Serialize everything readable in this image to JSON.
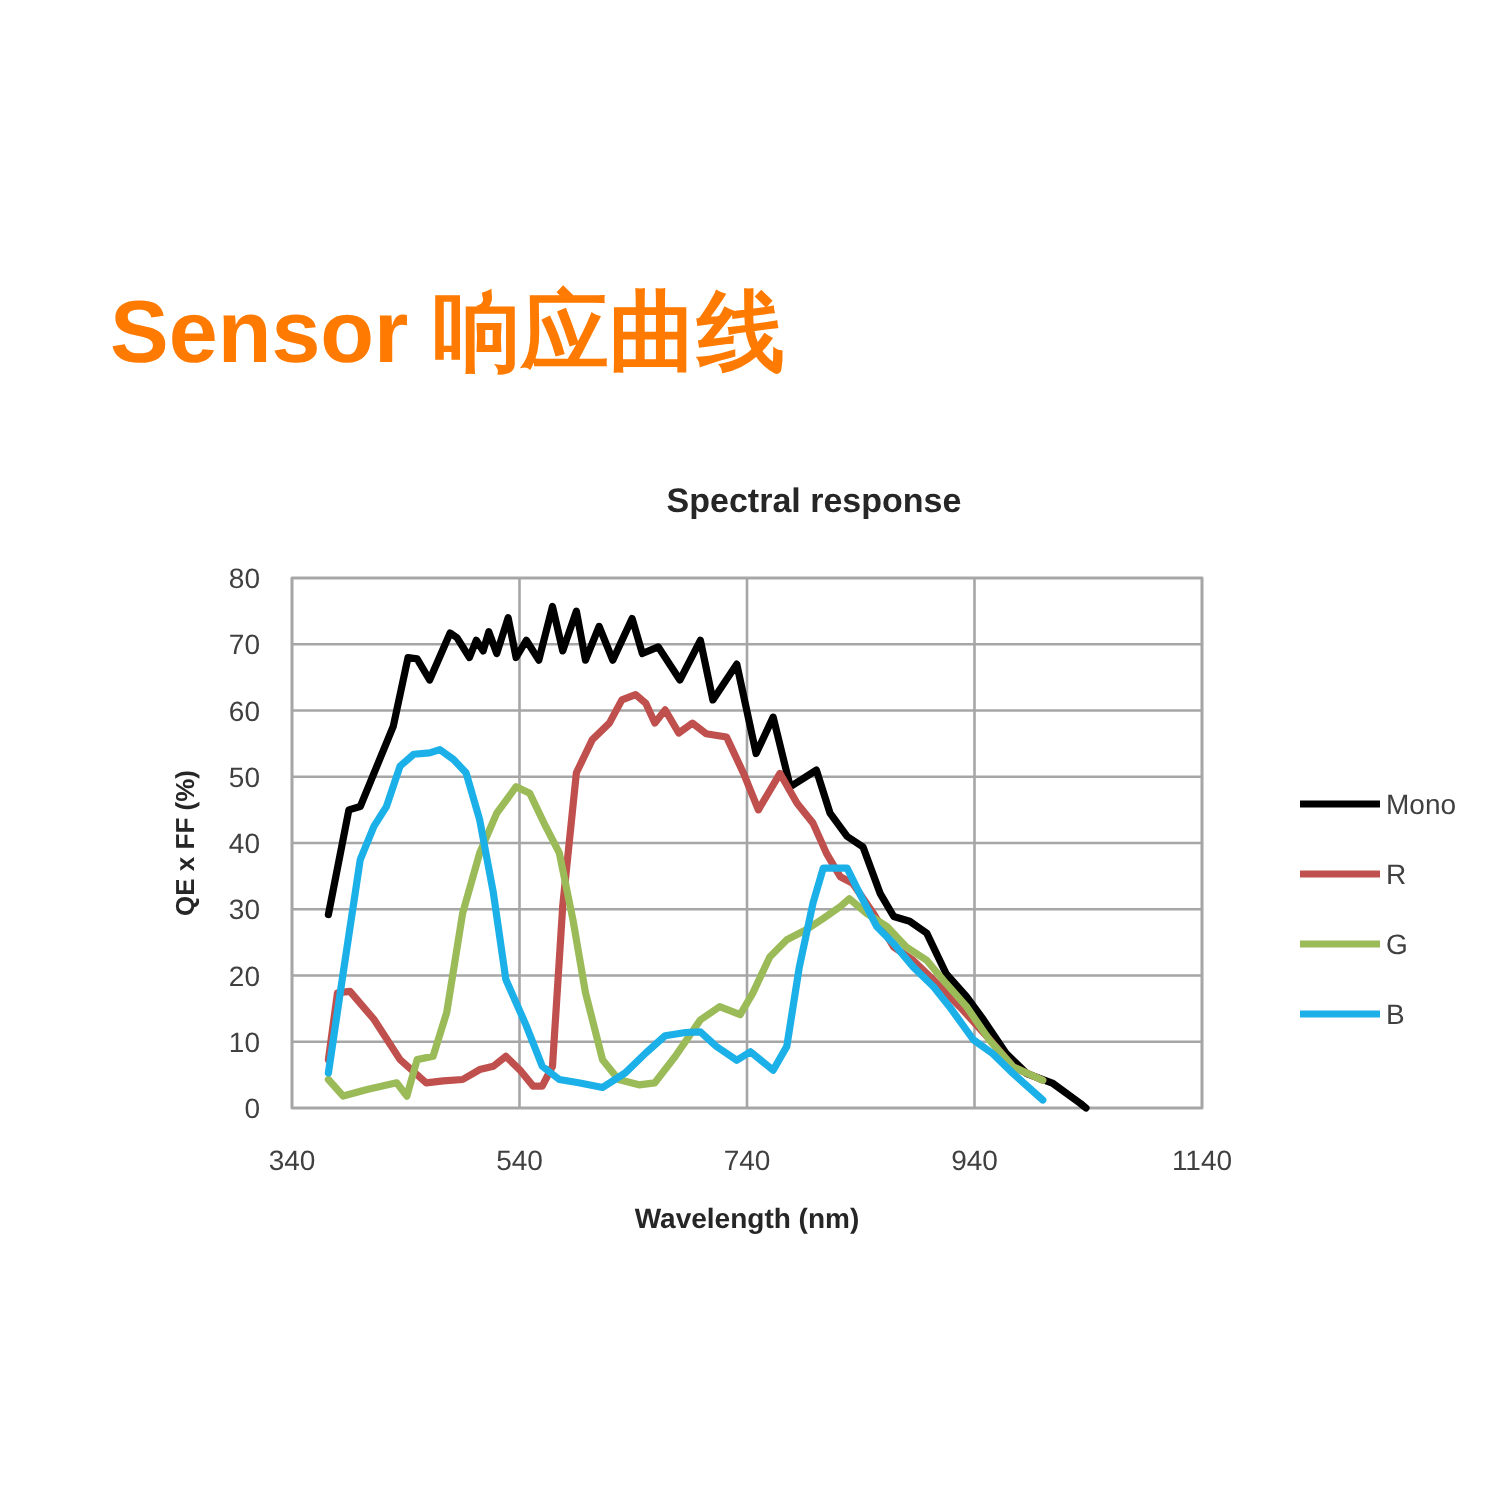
{
  "chart_data": {
    "type": "line",
    "title": "Sensor 响应曲线",
    "subtitle": "Spectral response",
    "xlabel": "Wavelength (nm)",
    "ylabel": "QE x FF (%)",
    "xlim": [
      340,
      1140
    ],
    "xticks": [
      340,
      540,
      740,
      940,
      1140
    ],
    "ylim": [
      0,
      80
    ],
    "yticks": [
      0,
      10,
      20,
      30,
      40,
      50,
      60,
      70,
      80
    ],
    "grid": true,
    "legend": "right",
    "series": [
      {
        "name": "Mono",
        "color": "#000000",
        "x": [
          372,
          390,
          400,
          429,
          442,
          450,
          461,
          479,
          485,
          496,
          502,
          508,
          513,
          520,
          530,
          537,
          546,
          557,
          569,
          578,
          590,
          598,
          610,
          622,
          639,
          648,
          662,
          681,
          699,
          710,
          731,
          748,
          763,
          778,
          801,
          813,
          828,
          842,
          857,
          869,
          883,
          898,
          915,
          933,
          948,
          968,
          986,
          1009,
          1033,
          1038
        ],
        "values": [
          29.2,
          45,
          45.5,
          57.6,
          68,
          67.8,
          64.6,
          71.7,
          71,
          68,
          70.6,
          69,
          71.9,
          68.6,
          74,
          68,
          70.6,
          67.6,
          75.7,
          69,
          75,
          67.6,
          72.7,
          67.6,
          73.9,
          68.6,
          69.6,
          64.6,
          70.6,
          61.6,
          67,
          53.5,
          59,
          48.5,
          51,
          44.5,
          41,
          39.4,
          32.4,
          28.9,
          28.2,
          26.4,
          20.3,
          16.8,
          13.3,
          8.2,
          5.2,
          3.7,
          0.7,
          0
        ]
      },
      {
        "name": "R",
        "color": "#c0504d",
        "x": [
          372,
          380,
          391,
          412,
          435,
          458,
          473,
          490,
          505,
          517,
          528,
          540,
          552,
          560,
          569,
          578,
          590,
          604,
          619,
          630,
          642,
          651,
          659,
          668,
          680,
          692,
          704,
          722,
          737,
          750,
          769,
          784,
          798,
          810,
          822,
          833,
          851,
          869,
          886,
          904,
          927,
          951,
          974,
          1000
        ],
        "values": [
          7.3,
          17.4,
          17.6,
          13.4,
          7.3,
          3.8,
          4.1,
          4.3,
          5.8,
          6.3,
          7.8,
          5.8,
          3.3,
          3.3,
          6.3,
          30.5,
          50.6,
          55.6,
          58.1,
          61.6,
          62.4,
          61.1,
          58.1,
          60.1,
          56.6,
          58.1,
          56.5,
          56,
          50.5,
          45,
          50.5,
          46,
          43,
          38.4,
          34.9,
          33.9,
          29.4,
          24.3,
          22.3,
          19.3,
          15.3,
          10.8,
          6.2,
          4.2
        ]
      },
      {
        "name": "G",
        "color": "#9bbb59",
        "x": [
          372,
          385,
          406,
          432,
          441,
          450,
          464,
          476,
          490,
          505,
          520,
          537,
          549,
          563,
          575,
          587,
          598,
          613,
          627,
          645,
          659,
          677,
          699,
          716,
          734,
          745,
          760,
          775,
          792,
          807,
          822,
          830,
          845,
          863,
          880,
          898,
          915,
          933,
          953,
          974,
          1000
        ],
        "values": [
          4.3,
          1.8,
          2.8,
          3.8,
          1.8,
          7.3,
          7.8,
          14.4,
          29.4,
          38.5,
          44.5,
          48.5,
          47.5,
          42.5,
          38.5,
          28.4,
          17.4,
          7.3,
          4.3,
          3.5,
          3.8,
          7.8,
          13.3,
          15.3,
          14.1,
          17.3,
          22.8,
          25.4,
          26.9,
          28.6,
          30.4,
          31.6,
          29.4,
          27.4,
          24.3,
          22.3,
          18.8,
          15.3,
          10.3,
          6.2,
          4.2
        ]
      },
      {
        "name": "B",
        "color": "#1cb0e8",
        "x": [
          372,
          385,
          400,
          412,
          423,
          435,
          447,
          461,
          470,
          482,
          493,
          505,
          517,
          528,
          546,
          560,
          575,
          592,
          613,
          633,
          651,
          668,
          686,
          699,
          713,
          731,
          743,
          763,
          775,
          786,
          798,
          807,
          828,
          839,
          854,
          869,
          886,
          904,
          918,
          939,
          956,
          974,
          1000
        ],
        "values": [
          5.3,
          20.4,
          37.5,
          42.5,
          45.5,
          51.6,
          53.4,
          53.6,
          54.1,
          52.6,
          50.6,
          43.5,
          32.5,
          19.4,
          12.4,
          6.3,
          4.3,
          3.8,
          3.1,
          5.3,
          8.3,
          10.9,
          11.4,
          11.5,
          9.3,
          7.2,
          8.5,
          5.7,
          9.3,
          21.3,
          30.9,
          36.2,
          36.2,
          32.4,
          27.4,
          24.8,
          21.3,
          18.3,
          15.3,
          10.3,
          8.2,
          5.2,
          1.2
        ]
      }
    ]
  }
}
